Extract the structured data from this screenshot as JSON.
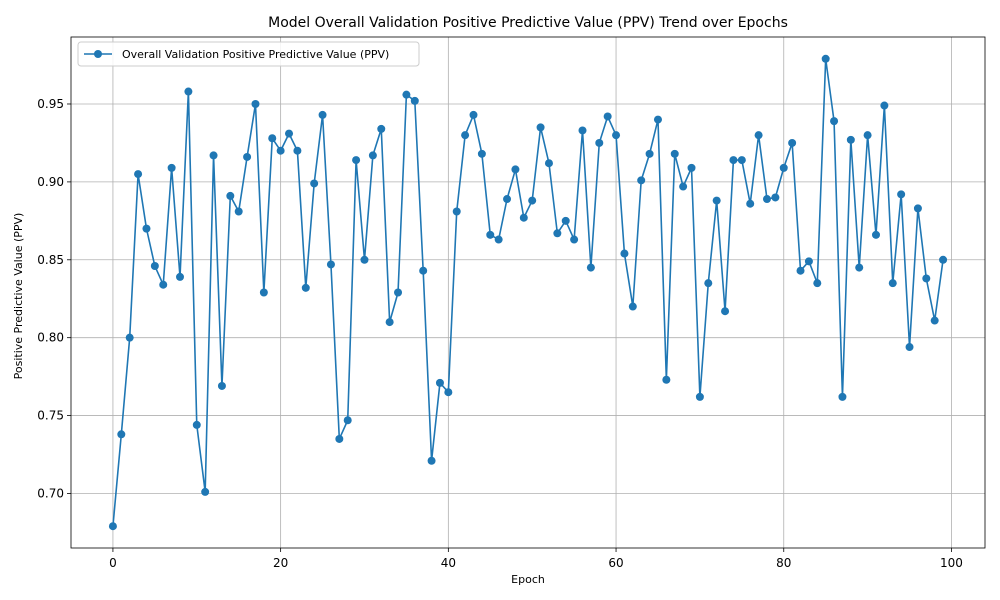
{
  "chart_data": {
    "type": "line",
    "title": "Model Overall Validation Positive Predictive Value (PPV) Trend over Epochs",
    "xlabel": "Epoch",
    "ylabel": "Positive Predictive Value (PPV)",
    "xlim": [
      -5,
      104
    ],
    "ylim": [
      0.665,
      0.993
    ],
    "xticks": [
      0,
      20,
      40,
      60,
      80,
      100
    ],
    "yticks": [
      0.7,
      0.75,
      0.8,
      0.85,
      0.9,
      0.95
    ],
    "grid": true,
    "legend_position": "top-left",
    "series": [
      {
        "name": "Overall Validation Positive Predictive Value (PPV)",
        "color": "#1f77b4",
        "marker": "circle",
        "x": [
          0,
          1,
          2,
          3,
          4,
          5,
          6,
          7,
          8,
          9,
          10,
          11,
          12,
          13,
          14,
          15,
          16,
          17,
          18,
          19,
          20,
          21,
          22,
          23,
          24,
          25,
          26,
          27,
          28,
          29,
          30,
          31,
          32,
          33,
          34,
          35,
          36,
          37,
          38,
          39,
          40,
          41,
          42,
          43,
          44,
          45,
          46,
          47,
          48,
          49,
          50,
          51,
          52,
          53,
          54,
          55,
          56,
          57,
          58,
          59,
          60,
          61,
          62,
          63,
          64,
          65,
          66,
          67,
          68,
          69,
          70,
          71,
          72,
          73,
          74,
          75,
          76,
          77,
          78,
          79,
          80,
          81,
          82,
          83,
          84,
          85,
          86,
          87,
          88,
          89,
          90,
          91,
          92,
          93,
          94,
          95,
          96,
          97,
          98,
          99
        ],
        "values": [
          0.679,
          0.738,
          0.8,
          0.905,
          0.87,
          0.846,
          0.834,
          0.909,
          0.839,
          0.958,
          0.744,
          0.701,
          0.917,
          0.769,
          0.891,
          0.881,
          0.916,
          0.95,
          0.829,
          0.928,
          0.92,
          0.931,
          0.92,
          0.832,
          0.899,
          0.943,
          0.847,
          0.735,
          0.747,
          0.914,
          0.85,
          0.917,
          0.934,
          0.81,
          0.829,
          0.956,
          0.952,
          0.843,
          0.721,
          0.771,
          0.765,
          0.881,
          0.93,
          0.943,
          0.918,
          0.866,
          0.863,
          0.889,
          0.908,
          0.877,
          0.888,
          0.935,
          0.912,
          0.867,
          0.875,
          0.863,
          0.933,
          0.845,
          0.925,
          0.942,
          0.93,
          0.854,
          0.82,
          0.901,
          0.918,
          0.94,
          0.773,
          0.918,
          0.897,
          0.909,
          0.762,
          0.835,
          0.888,
          0.817,
          0.914,
          0.914,
          0.886,
          0.93,
          0.889,
          0.89,
          0.909,
          0.925,
          0.843,
          0.849,
          0.835,
          0.979,
          0.939,
          0.762,
          0.927,
          0.845,
          0.93,
          0.866,
          0.949,
          0.835,
          0.892,
          0.794,
          0.883,
          0.838,
          0.811,
          0.85
        ]
      }
    ]
  }
}
